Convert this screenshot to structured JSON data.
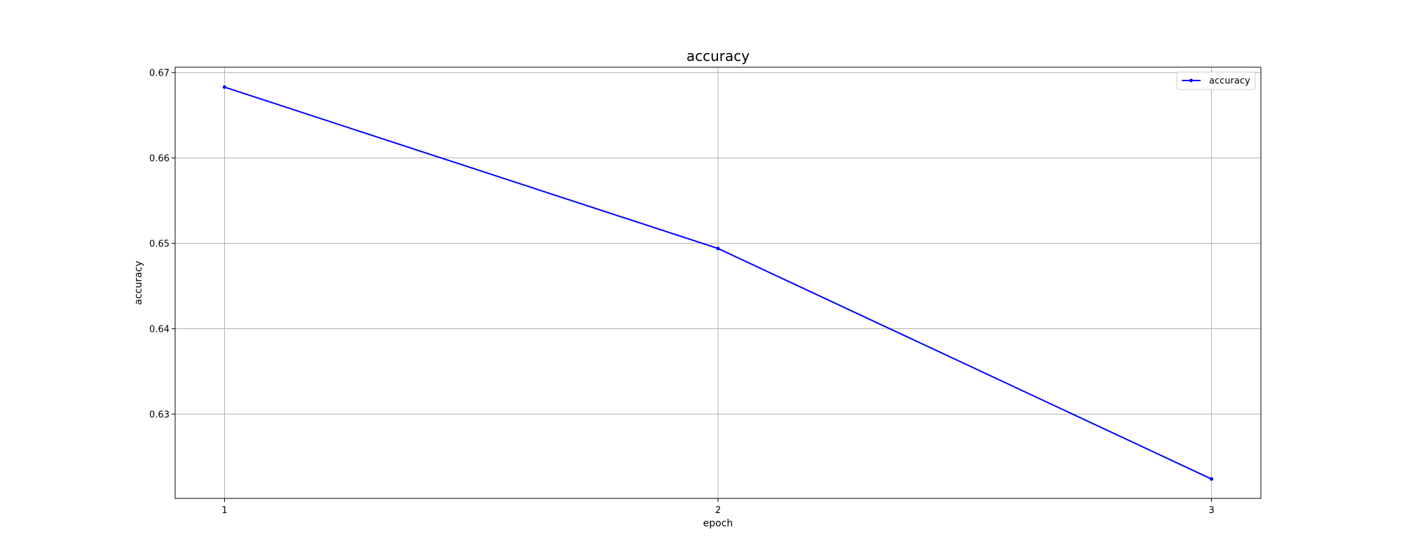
{
  "chart_data": {
    "type": "line",
    "title": "accuracy",
    "xlabel": "epoch",
    "ylabel": "accuracy",
    "x": [
      1,
      2,
      3
    ],
    "series": [
      {
        "name": "accuracy",
        "values": [
          0.6683,
          0.6494,
          0.6224
        ],
        "color": "#0000ff",
        "marker": "dot"
      }
    ],
    "xticks": [
      1,
      2,
      3
    ],
    "xtick_labels": [
      "1",
      "2",
      "3"
    ],
    "yticks": [
      0.63,
      0.64,
      0.65,
      0.66,
      0.67
    ],
    "ytick_labels": [
      "0.63",
      "0.64",
      "0.65",
      "0.66",
      "0.67"
    ],
    "xlim": [
      0.9,
      3.1
    ],
    "ylim": [
      0.62013,
      0.67063
    ],
    "grid": true,
    "legend_position": "top-right"
  }
}
